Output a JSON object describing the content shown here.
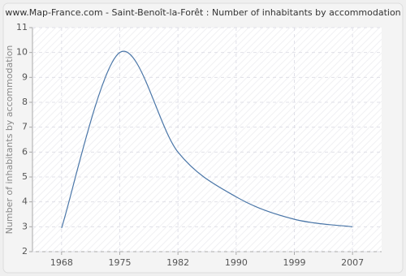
{
  "chart_data": {
    "type": "line",
    "title": "www.Map-France.com - Saint-Benoît-la-Forêt : Number of inhabitants by accommodation",
    "y_label": "Number of inhabitants by accommodation",
    "categories": [
      "1968",
      "1975",
      "1982",
      "1990",
      "1999",
      "2007"
    ],
    "series": [
      {
        "name": "Number of inhabitants by accommodation",
        "color": "#4a76a8",
        "values": [
          2.95,
          10,
          6,
          4.2,
          3.3,
          3
        ]
      }
    ],
    "ylim": [
      2,
      11
    ],
    "yticks": [
      2,
      3,
      4,
      5,
      6,
      7,
      8,
      9,
      10,
      11
    ],
    "grid": true
  }
}
